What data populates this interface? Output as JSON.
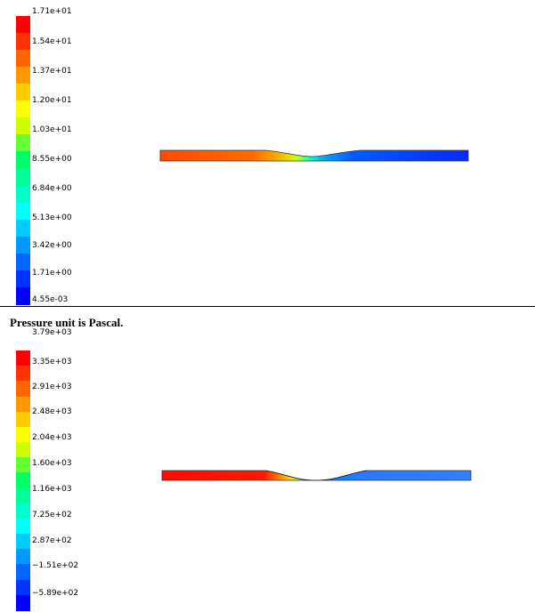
{
  "caption": "Pressure unit is Pascal.",
  "velocity_plot": {
    "legend_labels": [
      "1.71e+01",
      "1.54e+01",
      "1.37e+01",
      "1.20e+01",
      "1.03e+01",
      "8.55e+00",
      "6.84e+00",
      "5.13e+00",
      "3.42e+00",
      "1.71e+00",
      "4.55e-03"
    ],
    "colors": [
      "#ff0000",
      "#ff3300",
      "#ff6600",
      "#ff9900",
      "#ffcc00",
      "#ffff00",
      "#ccff00",
      "#66ff33",
      "#00ff66",
      "#00ff99",
      "#00ffcc",
      "#00ffff",
      "#00ccff",
      "#0099ff",
      "#0066ff",
      "#0033ff",
      "#0000ff"
    ]
  },
  "pressure_plot": {
    "legend_labels": [
      "3.79e+03",
      "3.35e+03",
      "2.91e+03",
      "2.48e+03",
      "2.04e+03",
      "1.60e+03",
      "1.16e+03",
      "7.25e+02",
      "2.87e+02",
      "−1.51e+02",
      "−5.89e+02"
    ],
    "colors": [
      "#ff0000",
      "#ff3300",
      "#ff6600",
      "#ff9900",
      "#ffcc00",
      "#ffff00",
      "#ccff00",
      "#66ff33",
      "#00ff66",
      "#00ff99",
      "#00ffcc",
      "#00ffff",
      "#00ccff",
      "#0099ff",
      "#0066ff",
      "#0033ff",
      "#0000ff"
    ]
  }
}
